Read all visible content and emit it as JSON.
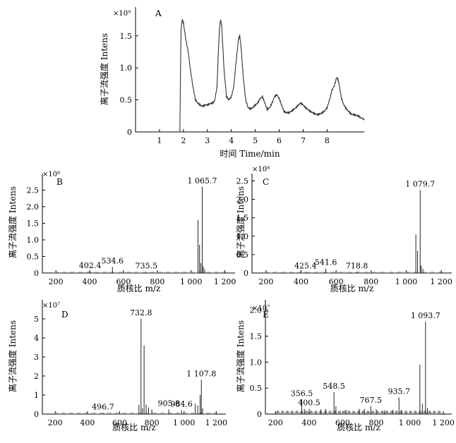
{
  "chart_data": [
    {
      "id": "A",
      "type": "line",
      "panel_label": "A",
      "multiplier": "×10⁹",
      "ylabel": "离子流强度 Intens",
      "xlabel": "时间  Time/min",
      "xlim": [
        0,
        9.55
      ],
      "ylim": [
        0,
        1.95
      ],
      "xticks": [
        1,
        2,
        3,
        4,
        5,
        6,
        7,
        8
      ],
      "yticks": [
        0,
        0.5,
        1.0,
        1.5
      ],
      "ytick_labels": [
        "0",
        "0.5",
        "1.0",
        "1.5"
      ],
      "x": [
        1.85,
        1.9,
        1.95,
        2.0,
        2.1,
        2.2,
        2.3,
        2.4,
        2.5,
        2.6,
        2.7,
        2.8,
        2.9,
        3.0,
        3.1,
        3.2,
        3.3,
        3.4,
        3.5,
        3.55,
        3.6,
        3.7,
        3.8,
        3.9,
        4.0,
        4.1,
        4.2,
        4.3,
        4.35,
        4.4,
        4.5,
        4.6,
        4.7,
        4.8,
        4.9,
        5.0,
        5.1,
        5.2,
        5.3,
        5.4,
        5.5,
        5.6,
        5.7,
        5.8,
        5.9,
        6.0,
        6.1,
        6.2,
        6.3,
        6.4,
        6.5,
        6.6,
        6.7,
        6.8,
        6.9,
        7.0,
        7.1,
        7.2,
        7.3,
        7.4,
        7.5,
        7.6,
        7.7,
        7.8,
        7.9,
        8.0,
        8.1,
        8.2,
        8.3,
        8.4,
        8.45,
        8.5,
        8.6,
        8.7,
        8.8,
        8.9,
        9.0,
        9.1,
        9.2,
        9.3,
        9.4,
        9.55
      ],
      "y": [
        0.0,
        1.6,
        1.75,
        1.7,
        1.45,
        1.25,
        0.95,
        0.7,
        0.5,
        0.45,
        0.42,
        0.4,
        0.42,
        0.42,
        0.44,
        0.45,
        0.48,
        0.7,
        1.6,
        1.75,
        1.65,
        0.95,
        0.55,
        0.5,
        0.55,
        0.7,
        1.1,
        1.45,
        1.5,
        1.35,
        0.85,
        0.5,
        0.38,
        0.36,
        0.38,
        0.42,
        0.45,
        0.52,
        0.55,
        0.45,
        0.35,
        0.38,
        0.45,
        0.55,
        0.58,
        0.52,
        0.42,
        0.32,
        0.3,
        0.3,
        0.32,
        0.35,
        0.38,
        0.42,
        0.45,
        0.42,
        0.38,
        0.35,
        0.32,
        0.3,
        0.28,
        0.27,
        0.28,
        0.3,
        0.33,
        0.38,
        0.5,
        0.65,
        0.72,
        0.85,
        0.82,
        0.75,
        0.52,
        0.42,
        0.36,
        0.32,
        0.28,
        0.27,
        0.26,
        0.25,
        0.22,
        0.2
      ]
    },
    {
      "id": "B",
      "type": "bar",
      "panel_label": "B",
      "multiplier": "×10⁸",
      "ylabel": "离子流强度  Intens",
      "xlabel": "质核比  m/z",
      "xlim": [
        120,
        1260
      ],
      "ylim": [
        0,
        3.0
      ],
      "xticks": [
        200,
        400,
        600,
        800,
        1000,
        1200
      ],
      "xtick_labels": [
        "200",
        "400",
        "600",
        "800",
        "1 000",
        "1 200"
      ],
      "yticks": [
        0,
        0.5,
        1.0,
        1.5,
        2.0,
        2.5
      ],
      "ytick_labels": [
        "0",
        "0.5",
        "1.0",
        "1.5",
        "2.0",
        "2.5"
      ],
      "peak_labels": [
        {
          "text": "402.4",
          "x": 402.4
        },
        {
          "text": "534.6",
          "x": 534.6
        },
        {
          "text": "735.5",
          "x": 735.5
        },
        {
          "text": "1 065.7",
          "x": 1065.7
        }
      ],
      "peaks": [
        [
          402.4,
          0.04
        ],
        [
          534.6,
          0.18
        ],
        [
          735.5,
          0.03
        ],
        [
          1041,
          1.6
        ],
        [
          1050,
          0.85
        ],
        [
          1058,
          0.3
        ],
        [
          1065.7,
          2.6
        ],
        [
          1072,
          0.2
        ],
        [
          1080,
          0.12
        ]
      ]
    },
    {
      "id": "C",
      "type": "bar",
      "panel_label": "C",
      "multiplier": "×10⁸",
      "ylabel": "离子流强度  Intens",
      "xlabel": "质核比  m/z",
      "xlim": [
        120,
        1260
      ],
      "ylim": [
        0,
        2.7
      ],
      "xticks": [
        200,
        400,
        600,
        800,
        1000,
        1200
      ],
      "xtick_labels": [
        "200",
        "400",
        "600",
        "800",
        "1 000",
        "1 200"
      ],
      "yticks": [
        0,
        0.5,
        1.0,
        1.5,
        2.0,
        2.5
      ],
      "ytick_labels": [
        "0",
        "0.5",
        "1.0",
        "1.5",
        "2.0",
        "2.5"
      ],
      "peak_labels": [
        {
          "text": "425.4",
          "x": 425.4
        },
        {
          "text": "541.6",
          "x": 541.6
        },
        {
          "text": "718.8",
          "x": 718.8
        },
        {
          "text": "1 079.7",
          "x": 1079.7
        }
      ],
      "peaks": [
        [
          425.4,
          0.03
        ],
        [
          541.6,
          0.12
        ],
        [
          718.8,
          0.03
        ],
        [
          1055,
          1.05
        ],
        [
          1065,
          0.6
        ],
        [
          1079.7,
          2.25
        ],
        [
          1085,
          0.2
        ],
        [
          1095,
          0.12
        ]
      ]
    },
    {
      "id": "D",
      "type": "bar",
      "panel_label": "D",
      "multiplier": "×10⁷",
      "ylabel": "离子流强度  Intens",
      "xlabel": "质核比  m/z",
      "xlim": [
        120,
        1260
      ],
      "ylim": [
        0,
        6.0
      ],
      "xticks": [
        200,
        400,
        600,
        800,
        1000,
        1200
      ],
      "xtick_labels": [
        "200",
        "400",
        "600",
        "800",
        "1 000",
        "1 200"
      ],
      "yticks": [
        0,
        1,
        2,
        3,
        4,
        5
      ],
      "ytick_labels": [
        "0",
        "1",
        "2",
        "3",
        "4",
        "5"
      ],
      "peak_labels": [
        {
          "text": "496.7",
          "x": 496.7
        },
        {
          "text": "732.8",
          "x": 732.8
        },
        {
          "text": "905.8",
          "x": 905.8
        },
        {
          "text": "984.6",
          "x": 984.6
        },
        {
          "text": "1 107.8",
          "x": 1107.8
        }
      ],
      "peaks": [
        [
          496.7,
          0.05
        ],
        [
          720,
          0.5
        ],
        [
          732.8,
          5.0
        ],
        [
          742,
          0.3
        ],
        [
          752,
          3.6
        ],
        [
          765,
          0.5
        ],
        [
          780,
          0.35
        ],
        [
          800,
          0.25
        ],
        [
          905.8,
          0.25
        ],
        [
          984.6,
          0.2
        ],
        [
          1070,
          0.55
        ],
        [
          1085,
          0.45
        ],
        [
          1100,
          1.0
        ],
        [
          1107.8,
          1.8
        ],
        [
          1115,
          0.3
        ]
      ]
    },
    {
      "id": "E",
      "type": "bar",
      "panel_label": "E",
      "multiplier": "×10⁷",
      "ylabel": "离子流强度  Intens",
      "xlabel": "质核比  m/z",
      "xlim": [
        140,
        1250
      ],
      "ylim": [
        0,
        2.2
      ],
      "xticks": [
        200,
        400,
        600,
        800,
        1000,
        1200
      ],
      "xtick_labels": [
        "200",
        "400",
        "600",
        "800",
        "1 000",
        "1 200"
      ],
      "yticks": [
        0,
        0.5,
        1.0,
        1.5,
        2.0
      ],
      "ytick_labels": [
        "0",
        "0.5",
        "1.0",
        "1.5",
        "2.0"
      ],
      "peak_labels": [
        {
          "text": "356.5",
          "x": 356.5
        },
        {
          "text": "400.5",
          "x": 400.5
        },
        {
          "text": "548.5",
          "x": 548.5
        },
        {
          "text": "767.5",
          "x": 767.5
        },
        {
          "text": "935.7",
          "x": 935.7
        },
        {
          "text": "1 093.7",
          "x": 1093.7
        }
      ],
      "peaks": [
        [
          356.5,
          0.28
        ],
        [
          372,
          0.1
        ],
        [
          400.5,
          0.1
        ],
        [
          470,
          0.09
        ],
        [
          500,
          0.1
        ],
        [
          548.5,
          0.42
        ],
        [
          560,
          0.15
        ],
        [
          620,
          0.08
        ],
        [
          700,
          0.1
        ],
        [
          730,
          0.1
        ],
        [
          767.5,
          0.15
        ],
        [
          800,
          0.09
        ],
        [
          850,
          0.07
        ],
        [
          900,
          0.08
        ],
        [
          935.7,
          0.32
        ],
        [
          950,
          0.08
        ],
        [
          1060,
          0.95
        ],
        [
          1075,
          0.2
        ],
        [
          1093.7,
          1.78
        ],
        [
          1105,
          0.12
        ]
      ]
    }
  ]
}
